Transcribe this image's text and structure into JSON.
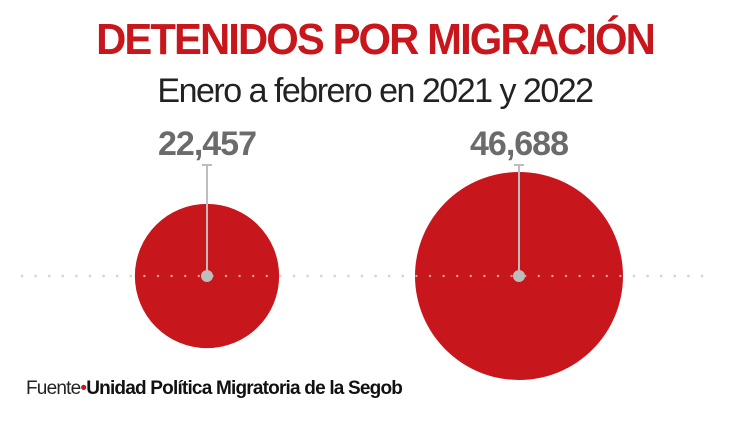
{
  "title": "DETENIDOS POR MIGRACIÓN",
  "subtitle": "Enero a febrero en 2021 y 2022",
  "colors": {
    "title": "#c8161d",
    "bubble": "#c8161d",
    "stem": "#bdbdbd",
    "value_label": "#6b6b6b",
    "baseline_dots": "#b8c8cc"
  },
  "chart_data": {
    "type": "bubble",
    "title": "DETENIDOS POR MIGRACIÓN",
    "subtitle": "Enero a febrero en 2021 y 2022",
    "categories": [
      "2021",
      "2022"
    ],
    "values": [
      22457,
      46688
    ],
    "data_labels": [
      "22,457",
      "46,688"
    ],
    "grid": false,
    "legend": "none"
  },
  "source": {
    "label": "Fuente",
    "text": "Unidad Política  Migratoria  de la Segob"
  }
}
